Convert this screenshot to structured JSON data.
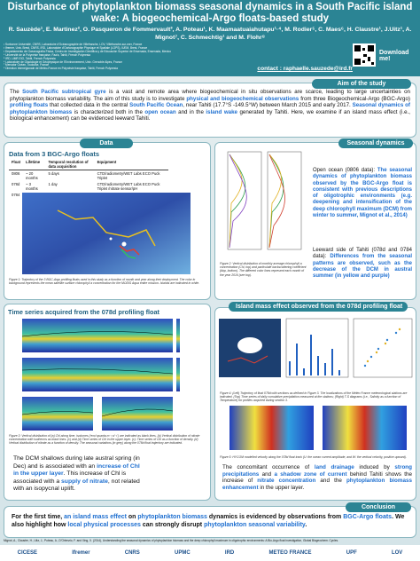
{
  "header": {
    "title": "Disturbance of phytoplankton biomass seasonal dynamics in a South Pacific island wake: A biogeochemical-Argo floats-based study",
    "authors": "R. Sauzède¹, E. Martinez², O. Pasqueron de Fommervault³, A. Poteau¹, K. Maamaatuaiahutapu¹·⁴, M. Rodier⁵, C. Maes⁶, H. Claustre¹, J.Uitz¹, A. Mignot⁷, C. Schmechtig¹ and M. Flohr⁸",
    "affiliations": [
      "¹ Sorbonne Université, CNRS, Laboratoire d'Océanographie de Villefranche, LOV, Villefranche-sur-mer, France",
      "² Ifremer, Univ. Brest, CNRS, IRD, Laboratoire d'Océanographie Physique et Spatiale (LOPS), IUEM, Brest, France",
      "³ Departamento de Oceanografía Física, Centro de Investigación Científica y de Educación Superior de Ensenada, Ensenada, Mexico",
      "⁴ Université de la Polynésie française, Faa'a, Tahiti, French Polynesia",
      "⁵ IRD, UMR EIO, Tahiti, French Polynesia",
      "⁶ Laboratoire de Glaciologie et Géophysique de l'Environnement, Univ. Grenoble Alpes, France",
      "⁷ Mercator Océan, Toulouse, France",
      "⁸ Direction Interrégionale de Météo-France en Polynésie française, Tahiti, French Polynesia"
    ],
    "download": "Download me!",
    "contact": "contact : raphaelle.sauzede@ird.fr"
  },
  "aim": {
    "heading": "Aim of the study",
    "text": [
      "The ",
      "South Pacific subtropical gyre",
      " is a vast and remote area where biogeochemical in situ observations are scarce, leading to large uncertainties on phytoplankton biomass variability. The aim of this study is to investigate ",
      "physical and biogeochemical observations",
      " from three Biogeochemical-Argo (BGC-Argo) ",
      "profiling floats",
      " that collected data in the central ",
      "South Pacific Ocean",
      ", near Tahiti (17.7°S -149.5°W) between March 2015 and early 2017. ",
      "Seasonal dynamics of phytoplankton biomass",
      " is characterized both in the ",
      "open ocean",
      " and in the ",
      "island wake",
      " generated by Tahiti. Here, we examine if an island mass effect (i.e., biological enhancement) can be evidenced leeward Tahiti."
    ]
  },
  "data": {
    "heading": "Data",
    "subtitle": "Data from 3 BGC-Argo floats",
    "table": {
      "columns": [
        "Float",
        "Lifetime",
        "Temporal resolution of data acquisition",
        "Equipment"
      ],
      "rows": [
        [
          "0806",
          "~ 20 months",
          "5 days",
          "CTD/radiometry/WET Labs ECO Puck Triplet"
        ],
        [
          "078d",
          "~ 3 months",
          "1 day",
          "CTD/radiometry/WET Labs ECO Puck Triplet /nitrate sensor/pH"
        ],
        [
          "0784",
          "~ 3 months",
          "5 days",
          "CTD/radiometry/WET Labs ECO Puck Triplet /nitrate sensor/pH"
        ]
      ]
    },
    "caption": "Figure 1: Trajectory of the 3 BGC-Argo profiling floats used in this study as a function of month and year along their deployment. The color in background represents the mean satellite surface chlorophyll a concentration for the MODIS Aqua entire mission. Islands are indicated in white."
  },
  "seasonal": {
    "heading": "Seasonal dynamics",
    "caption": "Figure 2: Vertical distribution of monthly average chlorophyll a concentration (Chl, top) and particulate backscattering coefficient (bbp, bottom). The different color lines represent each month of the year 2016 (see top).",
    "open_ocean": [
      "Open ocean (0806 data):",
      " The seasonal dynamics of phytoplankton biomass observed by the BGC-Argo float is consistent with previous descriptions of oligotrophic environments (e.g. deepening and intensification of the deep chlorophyll maximum (DCM) from winter to summer, Mignot et al., 2014)"
    ],
    "leeward": [
      "Leeward side of Tahiti (078d and 0784 data):",
      " Differences from the seasonal patterns are observed, such as the decrease of the DCM in austral summer (in yellow and purple)"
    ]
  },
  "timeseries": {
    "heading": "Time series acquired from the 078d profiling float",
    "caption": "Figure 3: Vertical distribution of (a) Chl along time, isolumes (‘excl quanta m⁻² d⁻¹’) are indicated as black lines. (b) Vertical distribution of nitrate concentration with isotherms as black lines. (c) and (d) Time series of Chl in the upper layer. (c): Time series of Chl as a function of density. (d) Vertical distribution of nitrate as a function of density. The seasonal variations (in grey) along the 078d float trajectory are indicated.",
    "text": [
      "The DCM shallows during late austral spring (in Dec) and is associated with an ",
      "increase of Chl in the upper layer",
      ". This increase of Chl is associated with a ",
      "supply of nitrate",
      ", not related with an isopycnal uplift."
    ]
  },
  "island": {
    "heading": "Island mass effect observed from the 078d profiling float",
    "caption4": "Figure 4: (Left) Trajectory of float 078d with sections as defined in Figure 3. The localizations of the Météo France meteorological stations are indicated. (Top) Time series of daily cumulative precipitation measured at the stations; (Right) T-S diagrams (i.e., Salinity as a function of Temperature) for profiles acquired during section 3.",
    "caption5": "Figure 5: HYCOM modelled velocity along the 078d float track (U: the ocean current amplitude, and W: the vertical velocity, positive upward).",
    "text": [
      "The concomitant occurrence of ",
      "land drainage",
      " induced by ",
      "strong precipitations",
      " and ",
      "a shadow zone of current",
      " behind Tahiti shows the increase of ",
      "nitrate concentration",
      " and the ",
      "phytoplankton biomass enhancement",
      " in the upper layer."
    ]
  },
  "conclusion": {
    "heading": "Conclusion",
    "text": [
      "For the first time, ",
      "an island mass effect",
      " on ",
      "phytoplankton biomass",
      " dynamics is evidenced by observations from ",
      "BGC-Argo floats",
      ". We also highlight how ",
      "local physical processes",
      " can strongly disrupt ",
      "phytoplankton seasonal variability",
      "."
    ]
  },
  "reference": "Mignot, A., Claustre, H., Uitz, J., Poteau, A., D'Ortenzio, F. and Xing, X. (2014), Understanding the seasonal dynamics of phytoplankton biomass and the deep chlorophyll maximum in oligotrophic environments: A Bio-Argo float investigation, Global Biogeochem. Cycles.",
  "logos": [
    "CICESE",
    "Ifremer",
    "CNRS",
    "UPMC",
    "IRD",
    "METEO FRANCE",
    "UPF",
    "LOV"
  ]
}
